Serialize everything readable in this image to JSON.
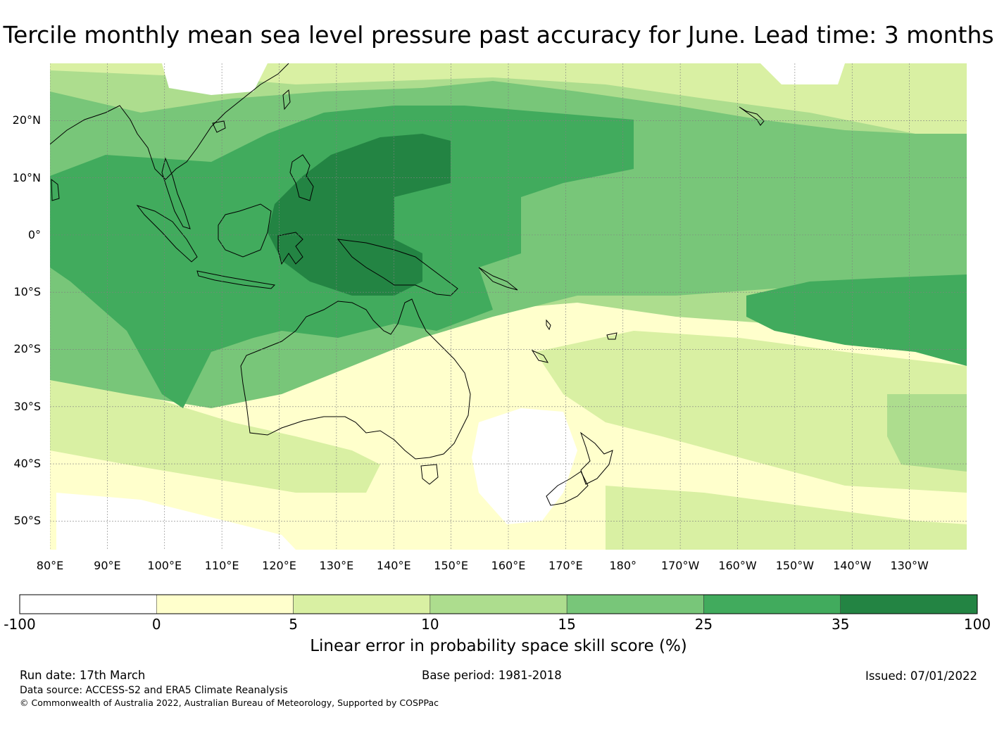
{
  "title": "Tercile monthly mean sea level pressure past accuracy for June. Lead time: 3 months",
  "map": {
    "lat_labels": [
      "20°N",
      "10°N",
      "0°",
      "10°S",
      "20°S",
      "30°S",
      "40°S",
      "50°S"
    ],
    "lon_labels": [
      "80°E",
      "90°E",
      "100°E",
      "110°E",
      "120°E",
      "130°E",
      "140°E",
      "150°E",
      "160°E",
      "170°E",
      "180°",
      "170°W",
      "160°W",
      "150°W",
      "140°W",
      "130°W"
    ],
    "lat_range": [
      -55,
      30
    ],
    "lon_range": [
      80,
      240
    ],
    "gridlines": true
  },
  "colorbar": {
    "label": "Linear error in probability space skill score (%)",
    "ticks": [
      "-100",
      "0",
      "5",
      "10",
      "15",
      "25",
      "35",
      "100"
    ],
    "colors": [
      "#ffffff",
      "#ffffcc",
      "#d9f0a3",
      "#addd8e",
      "#78c679",
      "#41ab5d",
      "#238443"
    ]
  },
  "footer": {
    "run_date": "Run date: 17th March",
    "base_period": "Base period: 1981-2018",
    "issued": "Issued: 07/01/2022",
    "data_source": "Data source: ACCESS-S2 and ERA5 Climate Reanalysis",
    "copyright": "© Commonwealth of Australia 2022, Australian Bureau of Meteorology, Supported by COSPPac"
  }
}
